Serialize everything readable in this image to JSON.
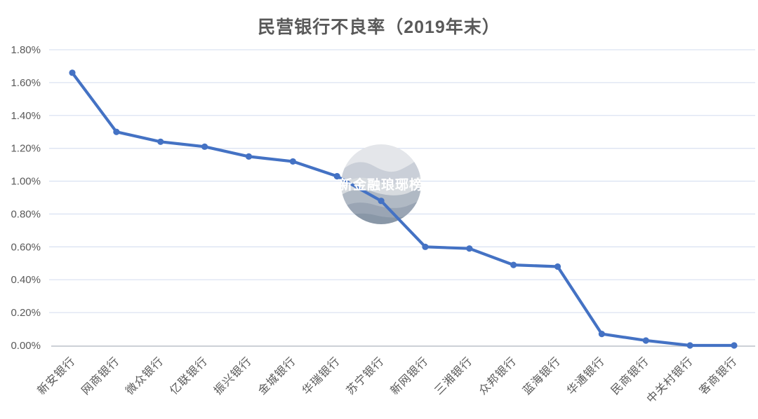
{
  "title": "民营银行不良率（2019年末）",
  "watermark": {
    "text": "新金融琅琊榜",
    "text_color": "#ffffff",
    "band_colors": [
      "#e4e6ea",
      "#c9ced7",
      "#d6dade",
      "#aeb7c3",
      "#97a3b2",
      "#8694a5"
    ]
  },
  "chart_data": {
    "type": "line",
    "title": "民营银行不良率（2019年末）",
    "categories": [
      "新安银行",
      "网商银行",
      "微众银行",
      "亿联银行",
      "振兴银行",
      "金城银行",
      "华瑞银行",
      "苏宁银行",
      "新网银行",
      "三湘银行",
      "众邦银行",
      "蓝海银行",
      "华通银行",
      "民商银行",
      "中关村银行",
      "客商银行"
    ],
    "values": [
      1.66,
      1.3,
      1.24,
      1.21,
      1.15,
      1.12,
      1.03,
      0.88,
      0.6,
      0.59,
      0.49,
      0.48,
      0.07,
      0.03,
      0.0,
      0.0
    ],
    "xlabel": "",
    "ylabel": "",
    "ylim": [
      0,
      1.8
    ],
    "ytick_step": 0.2,
    "ytick_labels": [
      "0.00%",
      "0.20%",
      "0.40%",
      "0.60%",
      "0.80%",
      "1.00%",
      "1.20%",
      "1.40%",
      "1.60%",
      "1.80%"
    ],
    "grid": true,
    "legend_position": "none",
    "colors": {
      "line": "#4472c4",
      "marker": "#4472c4",
      "gridline": "#dce3f2",
      "axis_line": "#bcc0c8",
      "tick_label": "#595959",
      "title": "#595959",
      "background": "#ffffff"
    }
  }
}
